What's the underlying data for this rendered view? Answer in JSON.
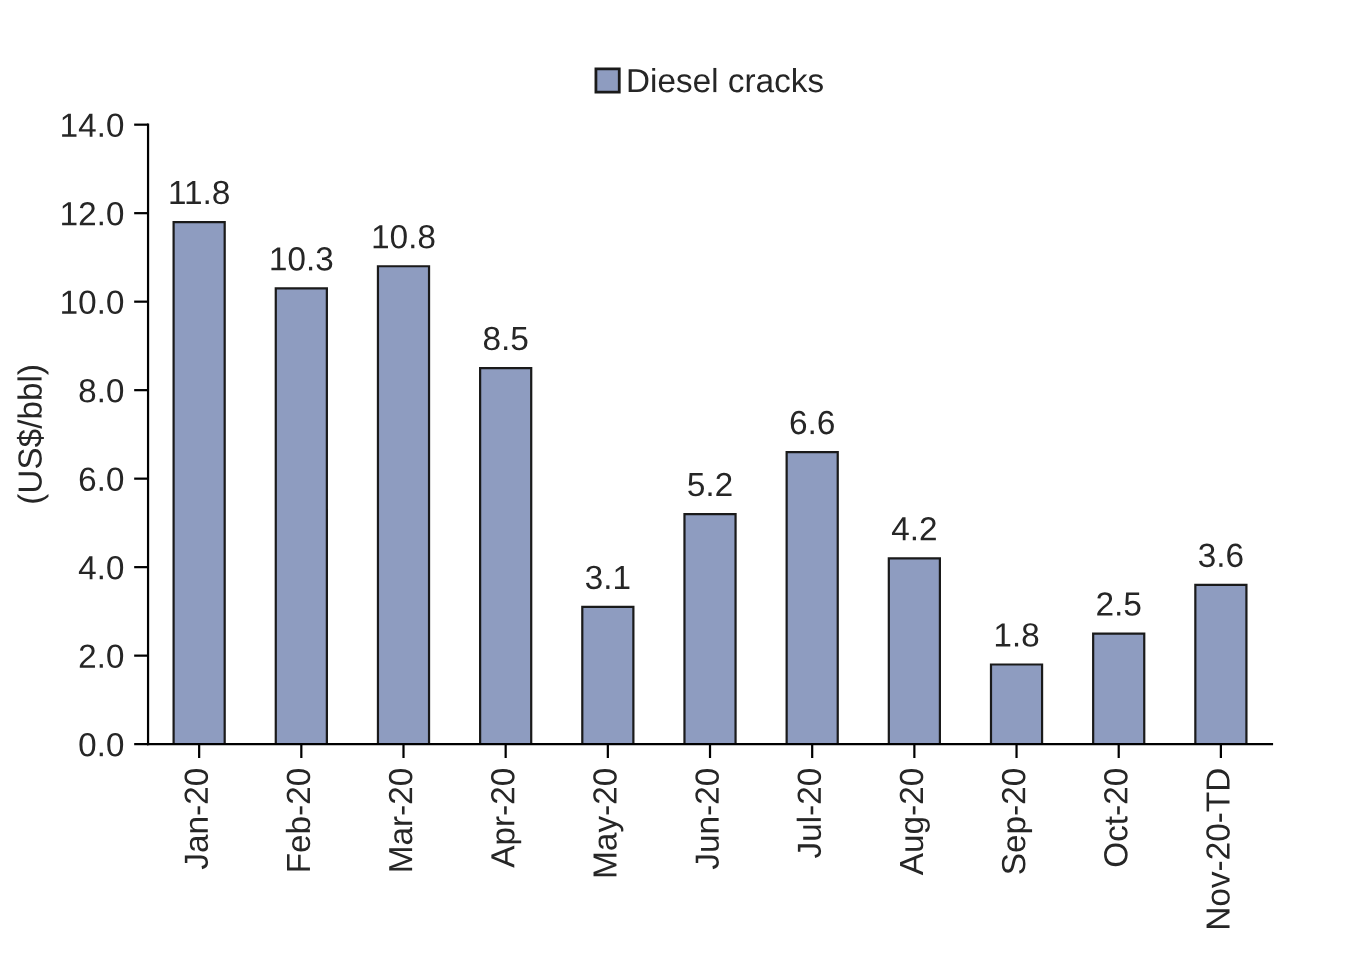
{
  "chart_data": {
    "type": "bar",
    "ylabel": "(US$/bbl)",
    "categories": [
      "Jan-20",
      "Feb-20",
      "Mar-20",
      "Apr-20",
      "May-20",
      "Jun-20",
      "Jul-20",
      "Aug-20",
      "Sep-20",
      "Oct-20",
      "Nov-20-TD"
    ],
    "series": [
      {
        "name": "Diesel cracks",
        "color": "#8e9cc0",
        "values": [
          11.8,
          10.3,
          10.8,
          8.5,
          3.1,
          5.2,
          6.6,
          4.2,
          1.8,
          2.5,
          3.6
        ]
      }
    ],
    "ylim": [
      0,
      14
    ],
    "yticks": [
      {
        "value": 0,
        "label": "0.0"
      },
      {
        "value": 2,
        "label": "2.0"
      },
      {
        "value": 4,
        "label": "4.0"
      },
      {
        "value": 6,
        "label": "6.0"
      },
      {
        "value": 8,
        "label": "8.0"
      },
      {
        "value": 10,
        "label": "10.0"
      },
      {
        "value": 12,
        "label": "12.0"
      },
      {
        "value": 14,
        "label": "14.0"
      }
    ],
    "data_labels": true,
    "grid": false,
    "legend": "top"
  }
}
